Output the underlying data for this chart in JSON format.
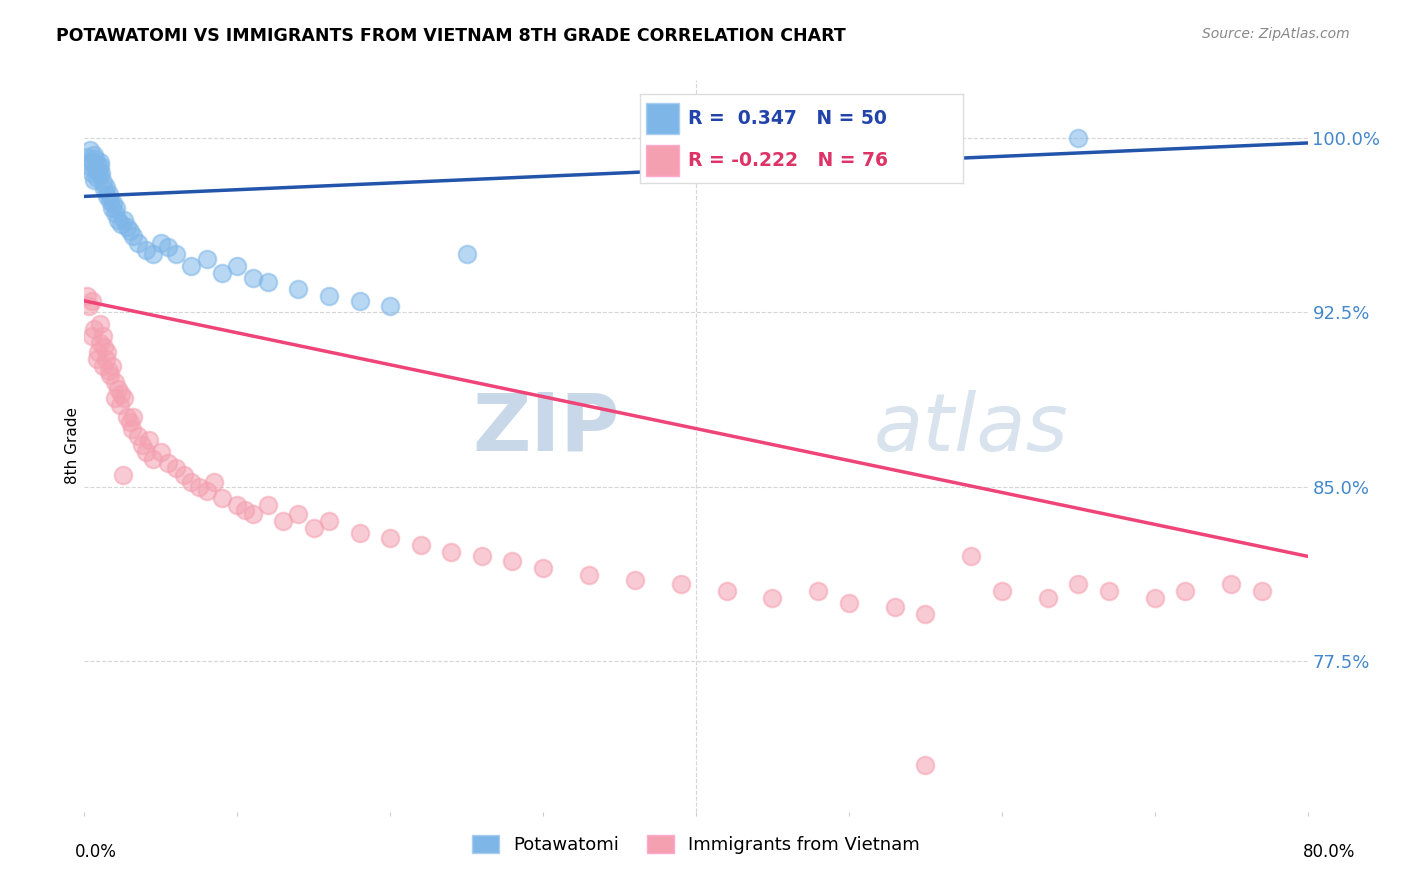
{
  "title": "POTAWATOMI VS IMMIGRANTS FROM VIETNAM 8TH GRADE CORRELATION CHART",
  "source": "Source: ZipAtlas.com",
  "ylabel": "8th Grade",
  "xlim": [
    0.0,
    80.0
  ],
  "ylim": [
    71.0,
    102.5
  ],
  "y_ticks": [
    77.5,
    85.0,
    92.5,
    100.0
  ],
  "y_tick_labels": [
    "77.5%",
    "85.0%",
    "92.5%",
    "100.0%"
  ],
  "legend_label1": "Potawatomi",
  "legend_label2": "Immigrants from Vietnam",
  "R1": 0.347,
  "N1": 50,
  "R2": -0.222,
  "N2": 76,
  "blue_color": "#7EB6E8",
  "pink_color": "#F4A0B0",
  "blue_line_color": "#2255AA",
  "pink_line_color": "#EE4477",
  "background_color": "#FFFFFF",
  "grid_color": "#CCCCCC",
  "potawatomi_x": [
    0.2,
    0.3,
    0.4,
    0.5,
    0.5,
    0.6,
    0.6,
    0.7,
    0.7,
    0.8,
    0.8,
    0.9,
    1.0,
    1.0,
    1.0,
    1.1,
    1.2,
    1.3,
    1.4,
    1.5,
    1.6,
    1.7,
    1.8,
    1.9,
    2.0,
    2.1,
    2.2,
    2.4,
    2.6,
    2.8,
    3.0,
    3.2,
    3.5,
    4.0,
    4.5,
    5.0,
    5.5,
    6.0,
    7.0,
    8.0,
    9.0,
    10.0,
    11.0,
    12.0,
    14.0,
    16.0,
    18.0,
    20.0,
    25.0,
    65.0
  ],
  "potawatomi_y": [
    99.2,
    98.8,
    99.5,
    99.0,
    98.5,
    99.3,
    98.2,
    99.1,
    98.7,
    98.9,
    98.3,
    98.6,
    99.0,
    98.8,
    98.4,
    98.5,
    98.1,
    97.8,
    97.9,
    97.5,
    97.6,
    97.3,
    97.0,
    97.2,
    96.8,
    97.0,
    96.5,
    96.3,
    96.5,
    96.2,
    96.0,
    95.8,
    95.5,
    95.2,
    95.0,
    95.5,
    95.3,
    95.0,
    94.5,
    94.8,
    94.2,
    94.5,
    94.0,
    93.8,
    93.5,
    93.2,
    93.0,
    92.8,
    95.0,
    100.0
  ],
  "vietnam_x": [
    0.2,
    0.3,
    0.5,
    0.5,
    0.6,
    0.8,
    0.9,
    1.0,
    1.0,
    1.2,
    1.2,
    1.3,
    1.4,
    1.5,
    1.6,
    1.7,
    1.8,
    2.0,
    2.0,
    2.2,
    2.3,
    2.4,
    2.5,
    2.6,
    2.8,
    3.0,
    3.1,
    3.2,
    3.5,
    3.8,
    4.0,
    4.2,
    4.5,
    5.0,
    5.5,
    6.0,
    6.5,
    7.0,
    7.5,
    8.0,
    8.5,
    9.0,
    10.0,
    10.5,
    11.0,
    12.0,
    13.0,
    14.0,
    15.0,
    16.0,
    18.0,
    20.0,
    22.0,
    24.0,
    26.0,
    28.0,
    30.0,
    33.0,
    36.0,
    39.0,
    42.0,
    45.0,
    48.0,
    50.0,
    53.0,
    55.0,
    58.0,
    60.0,
    63.0,
    65.0,
    67.0,
    70.0,
    72.0,
    75.0,
    77.0,
    55.0
  ],
  "vietnam_y": [
    93.2,
    92.8,
    91.5,
    93.0,
    91.8,
    90.5,
    90.8,
    91.2,
    92.0,
    91.5,
    90.2,
    91.0,
    90.5,
    90.8,
    90.0,
    89.8,
    90.2,
    89.5,
    88.8,
    89.2,
    88.5,
    89.0,
    85.5,
    88.8,
    88.0,
    87.8,
    87.5,
    88.0,
    87.2,
    86.8,
    86.5,
    87.0,
    86.2,
    86.5,
    86.0,
    85.8,
    85.5,
    85.2,
    85.0,
    84.8,
    85.2,
    84.5,
    84.2,
    84.0,
    83.8,
    84.2,
    83.5,
    83.8,
    83.2,
    83.5,
    83.0,
    82.8,
    82.5,
    82.2,
    82.0,
    81.8,
    81.5,
    81.2,
    81.0,
    80.8,
    80.5,
    80.2,
    80.5,
    80.0,
    79.8,
    79.5,
    82.0,
    80.5,
    80.2,
    80.8,
    80.5,
    80.2,
    80.5,
    80.8,
    80.5,
    73.0
  ],
  "blue_trendline_x": [
    0.0,
    80.0
  ],
  "blue_trendline_y": [
    97.5,
    99.8
  ],
  "pink_trendline_x": [
    0.0,
    80.0
  ],
  "pink_trendline_y": [
    93.0,
    82.0
  ]
}
